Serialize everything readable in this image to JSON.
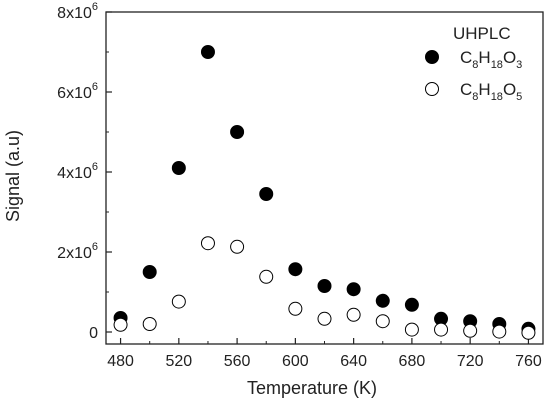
{
  "chart_data": {
    "type": "scatter",
    "title": "",
    "xlabel": "Temperature (K)",
    "ylabel": "Signal (a.u)",
    "xlim": [
      470,
      770
    ],
    "ylim": [
      -300000,
      8000000
    ],
    "x_ticks": [
      480,
      520,
      560,
      600,
      640,
      680,
      720,
      760
    ],
    "y_ticks": [
      {
        "value": 0,
        "mantissa": "0",
        "exp": ""
      },
      {
        "value": 2000000,
        "mantissa": "2x10",
        "exp": "6"
      },
      {
        "value": 4000000,
        "mantissa": "4x10",
        "exp": "6"
      },
      {
        "value": 6000000,
        "mantissa": "6x10",
        "exp": "6"
      },
      {
        "value": 8000000,
        "mantissa": "8x10",
        "exp": "6"
      }
    ],
    "legend": {
      "title": "UHPLC",
      "placement": "top-right",
      "entries": [
        {
          "base": "C",
          "parts": [
            [
              "8",
              "H"
            ],
            [
              "18",
              "O"
            ],
            [
              "3",
              ""
            ]
          ]
        },
        {
          "base": "C",
          "parts": [
            [
              "8",
              "H"
            ],
            [
              "18",
              "O"
            ],
            [
              "5",
              ""
            ]
          ]
        }
      ]
    },
    "series": [
      {
        "name": "C8H18O3",
        "marker": "filled-circle",
        "color": "#000000",
        "x": [
          480,
          500,
          520,
          540,
          560,
          580,
          600,
          620,
          640,
          660,
          680,
          700,
          720,
          740,
          760
        ],
        "y": [
          350000,
          1500000,
          4100000,
          7000000,
          5000000,
          3450000,
          1570000,
          1150000,
          1070000,
          780000,
          680000,
          330000,
          270000,
          200000,
          80000
        ]
      },
      {
        "name": "C8H18O5",
        "marker": "open-circle",
        "color": "#000000",
        "x": [
          480,
          500,
          520,
          540,
          560,
          580,
          600,
          620,
          640,
          660,
          680,
          700,
          720,
          740,
          760
        ],
        "y": [
          180000,
          200000,
          760000,
          2220000,
          2130000,
          1380000,
          580000,
          330000,
          430000,
          270000,
          60000,
          60000,
          30000,
          10000,
          -20000
        ]
      }
    ]
  }
}
